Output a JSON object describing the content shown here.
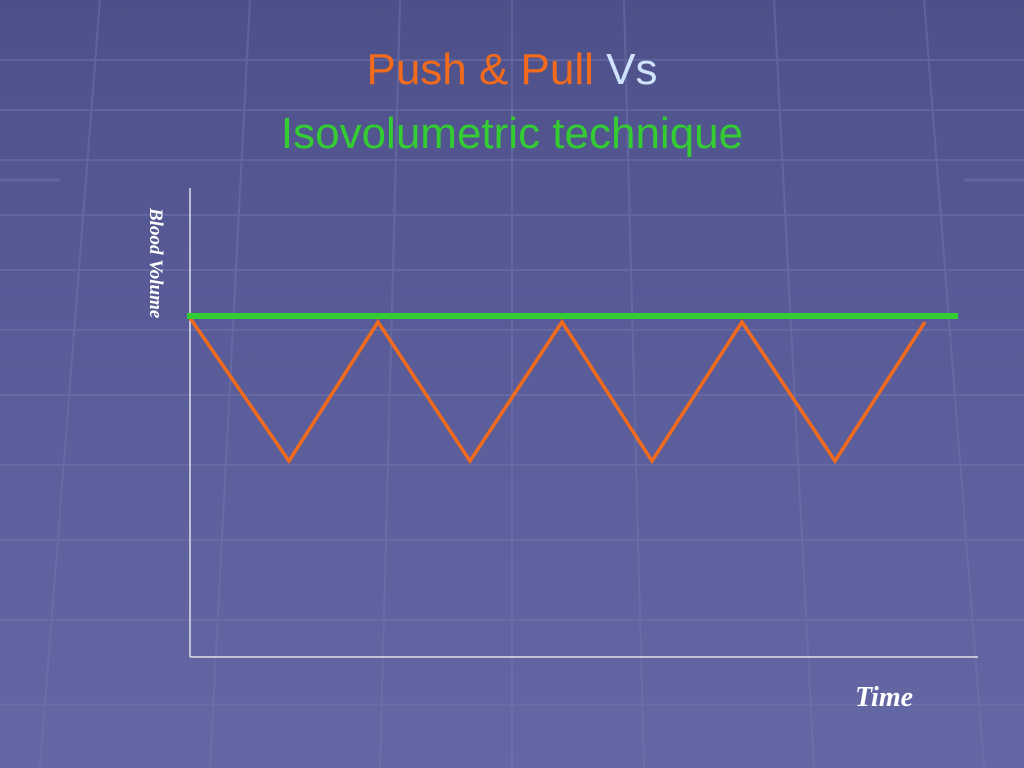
{
  "title": {
    "line1_part1": "Push & Pull",
    "line1_part2": "Vs",
    "line2": "Isovolumetric technique"
  },
  "y_axis_label": "Blood Volume",
  "x_axis_label": "Time"
}
